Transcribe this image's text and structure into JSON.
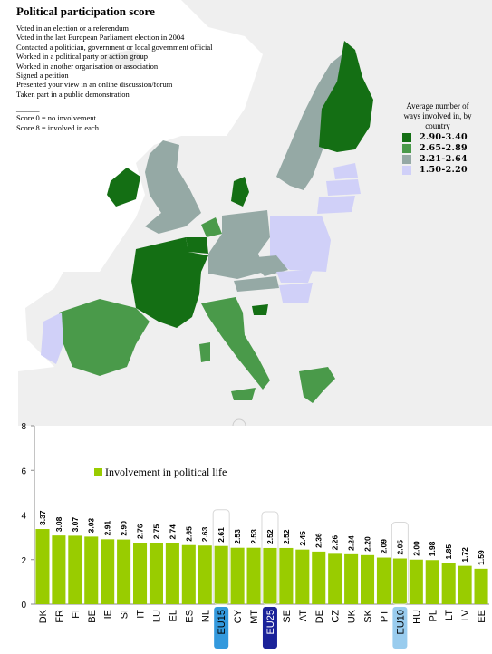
{
  "title": "Political participation score",
  "criteria": [
    "Voted in an election or a referendum",
    "Voted in the last European Parliament election in 2004",
    "Contacted a politician, government or local government official",
    "Worked in a political party or action group",
    "Worked in another organisation or association",
    "Signed a petition",
    "Presented your view in an online discussion/forum",
    "Taken part in a public demonstration"
  ],
  "score_notes": {
    "rule": "______",
    "zero": "Score 0 = no involvement",
    "eight": "Score 8 = involved in each"
  },
  "map": {
    "legend_title": [
      "Average number of",
      "ways involved in, by",
      "country"
    ],
    "classes": [
      {
        "label": "2.90-3.40",
        "color": "#146f14"
      },
      {
        "label": "2.65-2.89",
        "color": "#4a9a4a"
      },
      {
        "label": "2.21-2.64",
        "color": "#95a9a5"
      },
      {
        "label": "1.50-2.20",
        "color": "#d0d0f8"
      }
    ],
    "background_color": "#eeeeee",
    "nodata_color": "#f6f6f6"
  },
  "chart_data": {
    "type": "bar",
    "categories": [
      "DK",
      "FR",
      "FI",
      "BE",
      "IE",
      "SI",
      "IT",
      "LU",
      "EL",
      "ES",
      "NL",
      "EU15",
      "CY",
      "MT",
      "EU25",
      "SE",
      "AT",
      "DE",
      "CZ",
      "UK",
      "SK",
      "PT",
      "EU10",
      "HU",
      "PL",
      "LT",
      "LV",
      "EE"
    ],
    "values": [
      3.37,
      3.08,
      3.07,
      3.03,
      2.91,
      2.9,
      2.76,
      2.75,
      2.74,
      2.65,
      2.63,
      2.61,
      2.53,
      2.53,
      2.52,
      2.52,
      2.45,
      2.36,
      2.26,
      2.24,
      2.2,
      2.09,
      2.05,
      2.0,
      1.98,
      1.85,
      1.72,
      1.59
    ],
    "value_labels": [
      "3.37",
      "3.08",
      "3.07",
      "3.03",
      "2.91",
      "2.90",
      "2.76",
      "2.75",
      "2.74",
      "2.65",
      "2.63",
      "2.61",
      "2.53",
      "2.53",
      "2.52",
      "2.52",
      "2.45",
      "2.36",
      "2.26",
      "2.24",
      "2.20",
      "2.09",
      "2.05",
      "2.00",
      "1.98",
      "1.85",
      "1.72",
      "1.59"
    ],
    "ylim": [
      0,
      8
    ],
    "yticks": [
      "0",
      "2",
      "4",
      "6",
      "8"
    ],
    "legend": "Involvement in political life",
    "bar_color": "#99cc00",
    "highlighted": {
      "EU15": "#3399dd",
      "EU25": "#1a2299",
      "EU10": "#99ccee"
    }
  }
}
